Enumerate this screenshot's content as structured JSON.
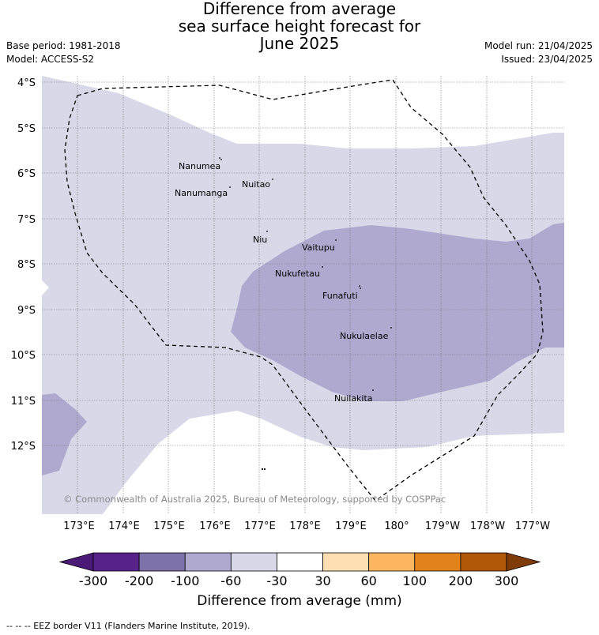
{
  "title": {
    "line1": "Difference from average",
    "line2": "sea surface height forecast for",
    "line3": "June 2025"
  },
  "meta": {
    "base_period": "Base period: 1981-2018",
    "model": "Model: ACCESS-S2",
    "model_run": "Model run: 21/04/2025",
    "issued": "Issued: 23/04/2025"
  },
  "axes": {
    "lat_labels": [
      "4°S",
      "5°S",
      "6°S",
      "7°S",
      "8°S",
      "9°S",
      "10°S",
      "11°S",
      "12°S"
    ],
    "lon_labels": [
      "173°E",
      "174°E",
      "175°E",
      "176°E",
      "177°E",
      "178°E",
      "179°E",
      "180°",
      "179°W",
      "178°W",
      "177°W"
    ]
  },
  "islands": [
    {
      "name": "Nanumea"
    },
    {
      "name": "Nanumanga"
    },
    {
      "name": "Nuitao"
    },
    {
      "name": "Niu"
    },
    {
      "name": "Vaitupu"
    },
    {
      "name": "Nukufetau"
    },
    {
      "name": "Funafuti"
    },
    {
      "name": "Nukulaelae"
    },
    {
      "name": "Nuilakita"
    }
  ],
  "credit": "© Commonwealth of Australia 2025, Bureau of Meteorology, supported by COSPPac",
  "colorbar": {
    "ticks": [
      "-300",
      "-200",
      "-100",
      "-60",
      "-30",
      "30",
      "60",
      "100",
      "200",
      "300"
    ],
    "colors": [
      "#4b1a77",
      "#57238a",
      "#7e72ab",
      "#afa9d0",
      "#d8d8e8",
      "#ffffff",
      "#fedfb3",
      "#fdb660",
      "#e2821a",
      "#b05607",
      "#7f3b08"
    ],
    "label": "Difference from average (mm)"
  },
  "legend_note": "--  --  -- EEZ border V11 (Flanders Marine Institute, 2019).",
  "chart_data": {
    "type": "heatmap",
    "title": "Difference from average sea surface height forecast for June 2025",
    "xlabel": "",
    "ylabel": "",
    "units": "mm",
    "x_range": [
      "172.2°E",
      "176.7°W"
    ],
    "y_range": [
      "3.9°S",
      "13.5°S"
    ],
    "bins": [
      -300,
      -200,
      -100,
      -60,
      -30,
      30,
      60,
      100,
      200,
      300
    ],
    "regions": [
      {
        "range": "-60 to -30",
        "area": "most of the domain north of ~12°S"
      },
      {
        "range": "-100 to -60",
        "area": "central band ~7.2°S–10.8°S, 176.6°E–176.7°W; small patch near 11–12.5°S, 173°E"
      },
      {
        "range": "-30 to 30",
        "area": "far north (~4°S, 175–180°) and far south-west corner"
      }
    ]
  }
}
